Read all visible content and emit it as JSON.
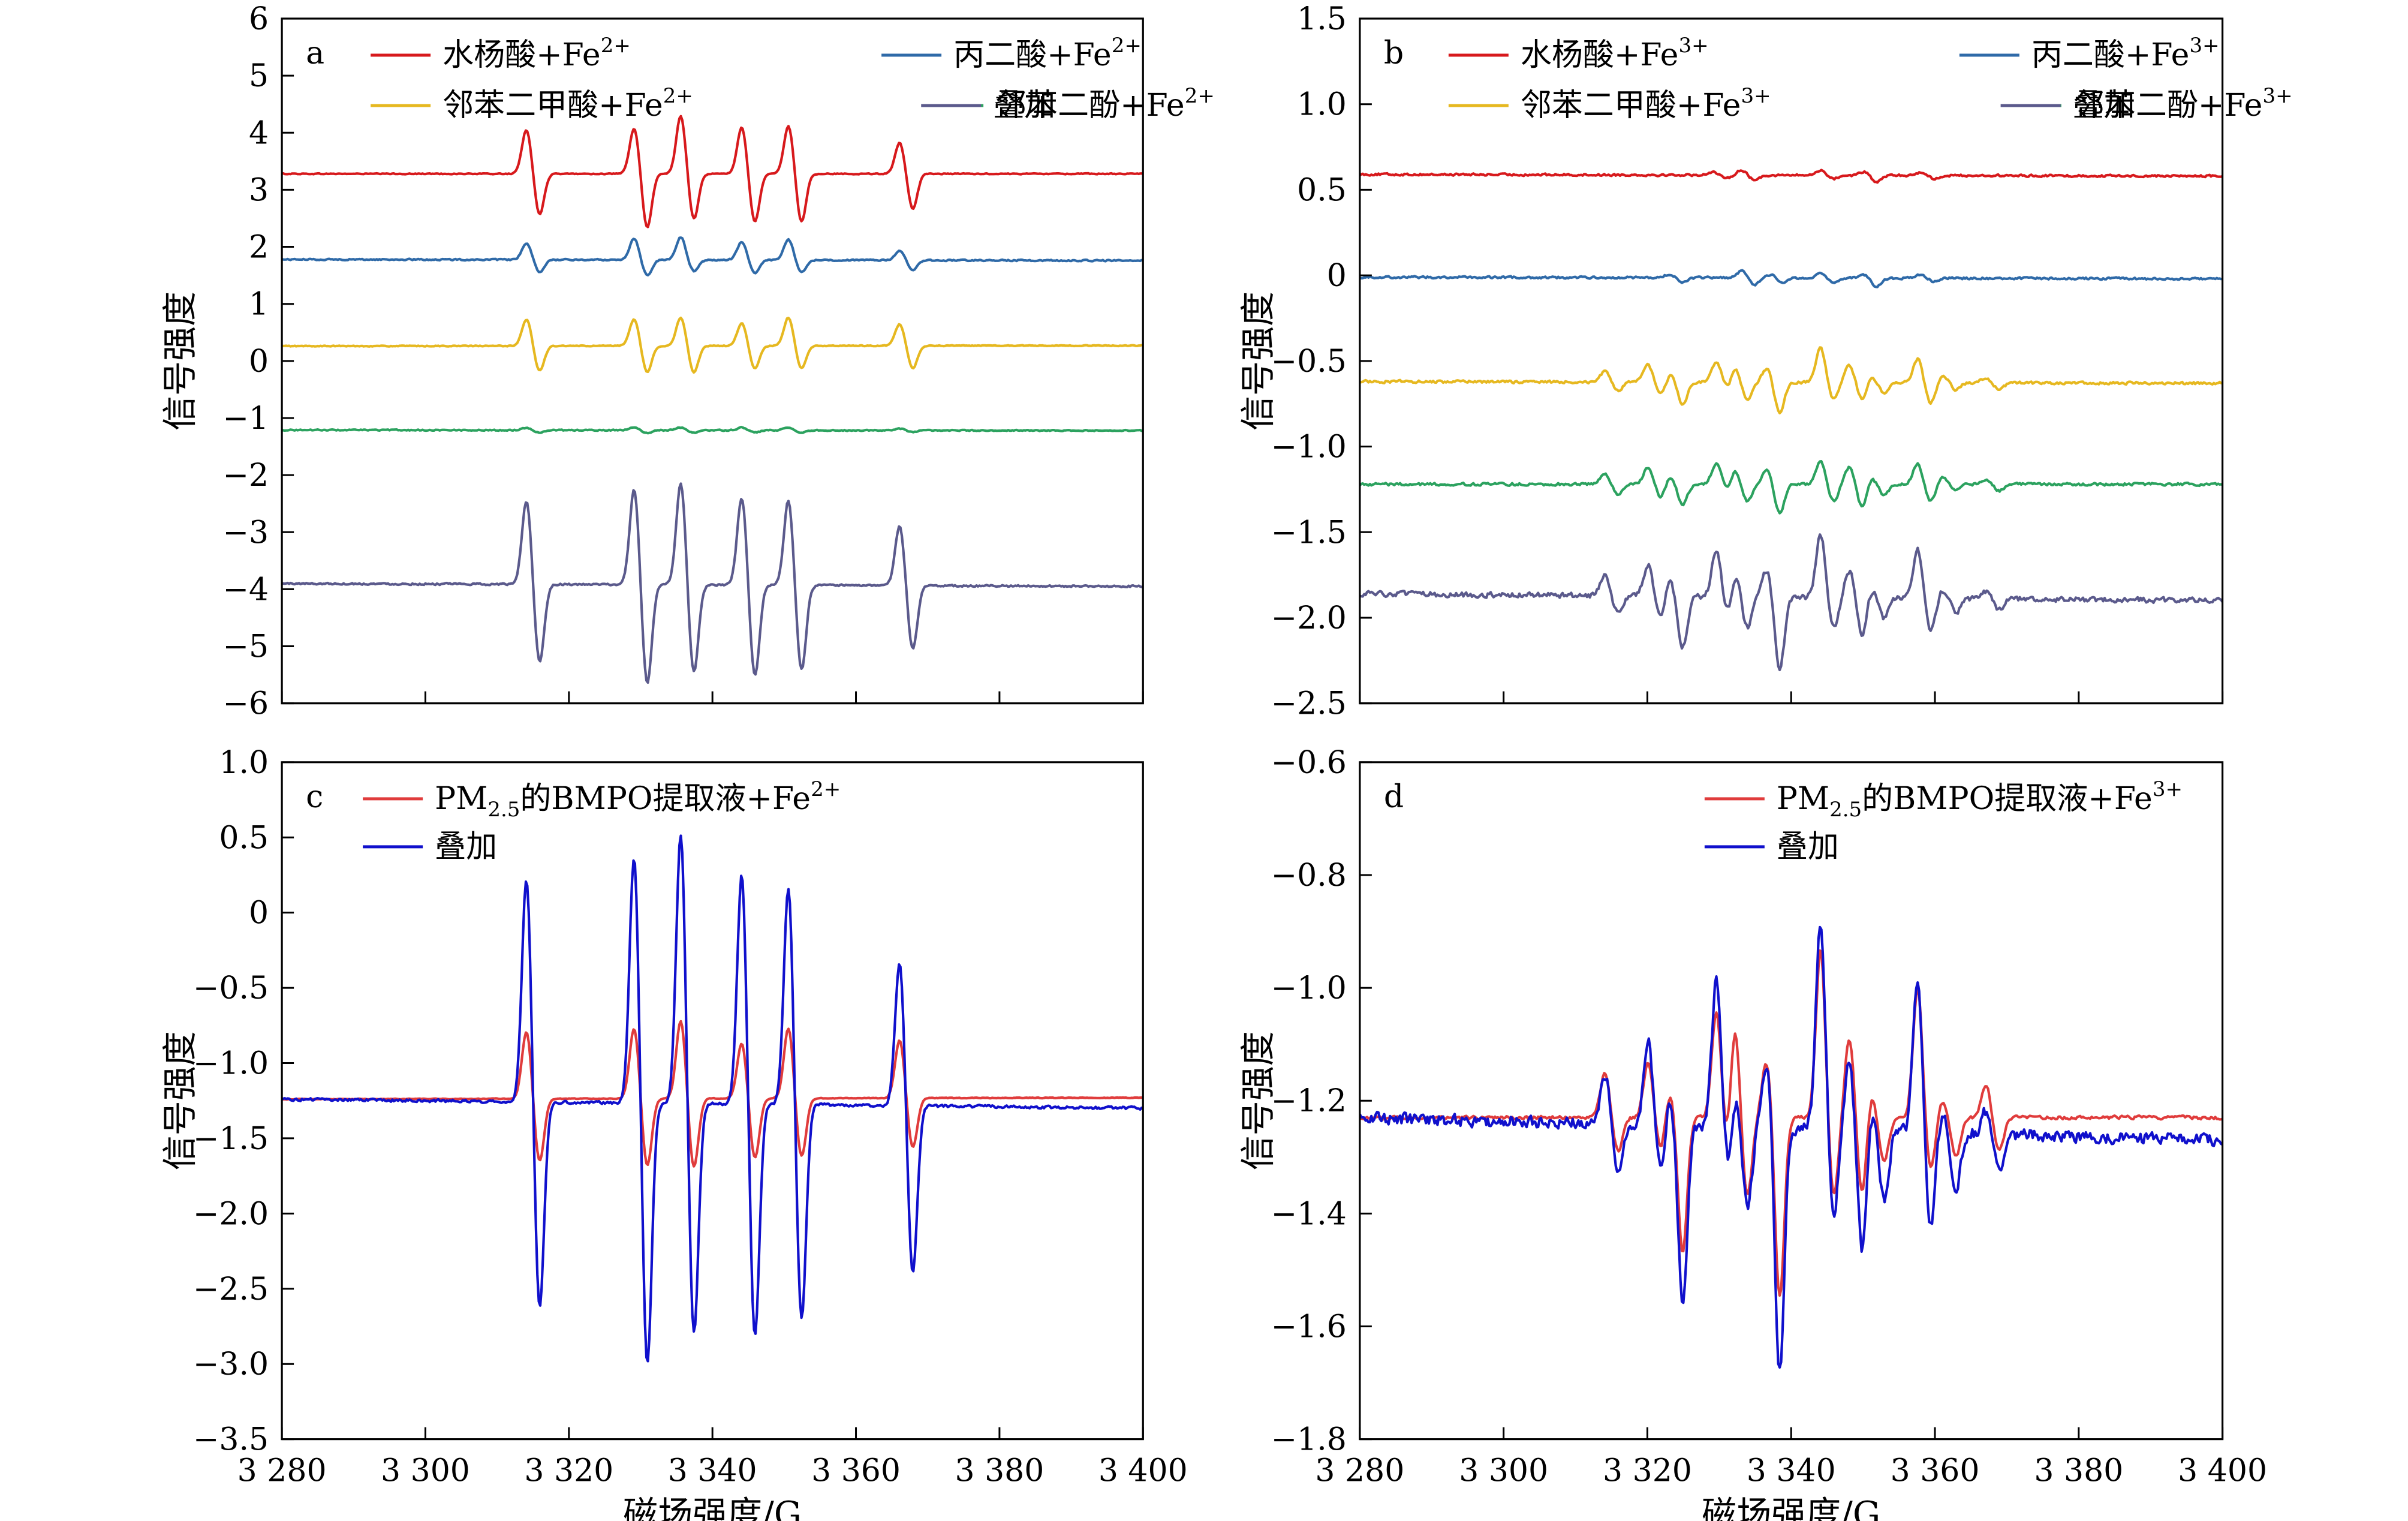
{
  "figure": {
    "x_axis_label": "磁场强度/G",
    "y_axis_label": "信号强度"
  },
  "chart_data": [
    {
      "panel": "a",
      "type": "line",
      "xlim": [
        3280,
        3400
      ],
      "ylim": [
        -6,
        6
      ],
      "x_ticks": [
        3280,
        3300,
        3320,
        3340,
        3360,
        3380,
        3400
      ],
      "x_tick_labels_shown": false,
      "y_ticks": [
        6,
        5,
        4,
        3,
        2,
        1,
        0,
        -1,
        -2,
        -3,
        -4,
        -5,
        -6
      ],
      "y_tick_labels": [
        "6",
        "5",
        "4",
        "3",
        "2",
        "1",
        "0",
        "−1",
        "−2",
        "−3",
        "−4",
        "−5",
        "−6"
      ],
      "ylabel": "信号强度",
      "legend": {
        "placement": "top",
        "columns": 2,
        "entries": [
          {
            "text": "水杨酸+Fe",
            "sup": "2+"
          },
          {
            "text": "丙二酸+Fe",
            "sup": "2+"
          },
          {
            "text": "邻苯二甲酸+Fe",
            "sup": "2+"
          },
          {
            "text": "邻苯二酚+Fe",
            "sup": "2+"
          },
          {
            "text": "叠加",
            "sup": ""
          }
        ]
      },
      "series": [
        {
          "name": "水杨酸+Fe2+",
          "color": "#d7191c",
          "baseline": 3.28,
          "baseline_end": 3.28,
          "noise": 0.01,
          "peaks": [
            [
              3315.0,
              0.78,
              -0.72
            ],
            [
              3330.0,
              0.8,
              -0.95
            ],
            [
              3336.5,
              1.02,
              -0.8
            ],
            [
              3345.0,
              0.82,
              -0.85
            ],
            [
              3351.5,
              0.85,
              -0.85
            ],
            [
              3367.0,
              0.55,
              -0.62
            ]
          ]
        },
        {
          "name": "丙二酸+Fe2+",
          "color": "#2f6aa8",
          "baseline": 1.78,
          "baseline_end": 1.76,
          "noise": 0.015,
          "peaks": [
            [
              3315.0,
              0.28,
              -0.22
            ],
            [
              3330.0,
              0.38,
              -0.27
            ],
            [
              3336.5,
              0.4,
              -0.2
            ],
            [
              3345.0,
              0.32,
              -0.23
            ],
            [
              3351.5,
              0.36,
              -0.21
            ],
            [
              3367.0,
              0.16,
              -0.17
            ]
          ]
        },
        {
          "name": "邻苯二甲酸+Fe2+",
          "color": "#e6b820",
          "baseline": 0.26,
          "baseline_end": 0.27,
          "noise": 0.01,
          "peaks": [
            [
              3315.0,
              0.47,
              -0.44
            ],
            [
              3330.0,
              0.47,
              -0.46
            ],
            [
              3336.5,
              0.5,
              -0.47
            ],
            [
              3345.0,
              0.4,
              -0.4
            ],
            [
              3351.5,
              0.5,
              -0.4
            ],
            [
              3367.0,
              0.38,
              -0.4
            ]
          ]
        },
        {
          "name": "邻苯二酚+Fe2+",
          "color": "#2ca25f",
          "baseline": -1.21,
          "baseline_end": -1.22,
          "noise": 0.012,
          "peaks": [
            [
              3315.0,
              0.04,
              -0.04
            ],
            [
              3330.0,
              0.05,
              -0.05
            ],
            [
              3336.5,
              0.05,
              -0.04
            ],
            [
              3345.0,
              0.05,
              -0.04
            ],
            [
              3351.5,
              0.05,
              -0.04
            ],
            [
              3367.0,
              0.03,
              -0.03
            ]
          ]
        },
        {
          "name": "叠加",
          "color": "#5b5a8c",
          "baseline": -3.9,
          "baseline_end": -3.95,
          "noise": 0.02,
          "peaks": [
            [
              3315.0,
              1.48,
              -1.38
            ],
            [
              3330.0,
              1.68,
              -1.75
            ],
            [
              3336.5,
              1.8,
              -1.55
            ],
            [
              3345.0,
              1.55,
              -1.6
            ],
            [
              3351.5,
              1.5,
              -1.5
            ],
            [
              3367.0,
              1.05,
              -1.12
            ]
          ]
        }
      ]
    },
    {
      "panel": "b",
      "type": "line",
      "xlim": [
        3280,
        3400
      ],
      "ylim": [
        -2.5,
        1.5
      ],
      "x_ticks": [
        3280,
        3300,
        3320,
        3340,
        3360,
        3380,
        3400
      ],
      "x_tick_labels_shown": false,
      "y_ticks": [
        1.5,
        1.0,
        0.5,
        0,
        -0.5,
        -1.0,
        -1.5,
        -2.0,
        -2.5
      ],
      "y_tick_labels": [
        "1.5",
        "1.0",
        "0.5",
        "0",
        "−0.5",
        "−1.0",
        "−1.5",
        "−2.0",
        "−2.5"
      ],
      "ylabel": "信号强度",
      "legend": {
        "placement": "top",
        "columns": 2,
        "entries": [
          {
            "text": "水杨酸+Fe",
            "sup": "3+"
          },
          {
            "text": "丙二酸+Fe",
            "sup": "3+"
          },
          {
            "text": "邻苯二甲酸+Fe",
            "sup": "3+"
          },
          {
            "text": "邻苯二酚+Fe",
            "sup": "3+"
          },
          {
            "text": "叠加",
            "sup": ""
          }
        ]
      },
      "series": [
        {
          "name": "水杨酸+Fe3+",
          "color": "#d7191c",
          "baseline": 0.59,
          "baseline_end": 0.58,
          "noise": 0.008,
          "peaks": [
            [
              3330.0,
              0.02,
              -0.02
            ],
            [
              3334.0,
              0.03,
              -0.03
            ],
            [
              3345.0,
              0.03,
              -0.02
            ],
            [
              3351.0,
              0.02,
              -0.04
            ],
            [
              3359.0,
              0.02,
              -0.02
            ]
          ]
        },
        {
          "name": "丙二酸+Fe3+",
          "color": "#2f6aa8",
          "baseline": -0.01,
          "baseline_end": -0.02,
          "noise": 0.008,
          "peaks": [
            [
              3324.0,
              0.02,
              -0.03
            ],
            [
              3334.0,
              0.04,
              -0.04
            ],
            [
              3338.0,
              0.02,
              -0.03
            ],
            [
              3345.0,
              0.03,
              -0.03
            ],
            [
              3351.0,
              0.02,
              -0.05
            ],
            [
              3359.0,
              0.02,
              -0.02
            ]
          ]
        },
        {
          "name": "邻苯二甲酸+Fe3+",
          "color": "#e6b820",
          "baseline": -0.62,
          "baseline_end": -0.63,
          "noise": 0.01,
          "peaks": [
            [
              3315.0,
              0.06,
              -0.05
            ],
            [
              3321.0,
              0.1,
              -0.08
            ],
            [
              3324.0,
              0.05,
              -0.13
            ],
            [
              3330.5,
              0.12,
              -0.06
            ],
            [
              3333.0,
              0.1,
              -0.1
            ],
            [
              3337.5,
              0.08,
              -0.18
            ],
            [
              3345.0,
              0.2,
              -0.1
            ],
            [
              3349.0,
              0.1,
              -0.1
            ],
            [
              3352.0,
              0.04,
              -0.06
            ],
            [
              3358.5,
              0.14,
              -0.12
            ],
            [
              3362.0,
              0.04,
              -0.04
            ],
            [
              3368.0,
              0.03,
              -0.04
            ]
          ]
        },
        {
          "name": "邻苯二酚+Fe3+",
          "color": "#2ca25f",
          "baseline": -1.22,
          "baseline_end": -1.22,
          "noise": 0.01,
          "peaks": [
            [
              3315.0,
              0.06,
              -0.06
            ],
            [
              3321.0,
              0.1,
              -0.08
            ],
            [
              3324.0,
              0.05,
              -0.12
            ],
            [
              3330.5,
              0.12,
              -0.06
            ],
            [
              3333.0,
              0.1,
              -0.1
            ],
            [
              3337.5,
              0.08,
              -0.17
            ],
            [
              3345.0,
              0.14,
              -0.1
            ],
            [
              3349.0,
              0.1,
              -0.14
            ],
            [
              3352.0,
              0.04,
              -0.06
            ],
            [
              3358.5,
              0.12,
              -0.1
            ],
            [
              3362.0,
              0.04,
              -0.04
            ],
            [
              3368.0,
              0.03,
              -0.04
            ]
          ]
        },
        {
          "name": "叠加",
          "color": "#5b5a8c",
          "baseline": -1.86,
          "baseline_end": -1.9,
          "noise": 0.02,
          "peaks": [
            [
              3315.0,
              0.12,
              -0.1
            ],
            [
              3321.0,
              0.18,
              -0.12
            ],
            [
              3324.0,
              0.1,
              -0.3
            ],
            [
              3330.5,
              0.27,
              -0.15
            ],
            [
              3333.0,
              0.18,
              -0.18
            ],
            [
              3337.5,
              0.16,
              -0.42
            ],
            [
              3345.0,
              0.37,
              -0.18
            ],
            [
              3349.0,
              0.16,
              -0.22
            ],
            [
              3352.0,
              0.06,
              -0.12
            ],
            [
              3358.5,
              0.29,
              -0.19
            ],
            [
              3362.0,
              0.05,
              -0.08
            ],
            [
              3368.0,
              0.04,
              -0.06
            ]
          ]
        }
      ]
    },
    {
      "panel": "c",
      "type": "line",
      "xlim": [
        3280,
        3400
      ],
      "ylim": [
        -3.5,
        1.0
      ],
      "x_ticks": [
        3280,
        3300,
        3320,
        3340,
        3360,
        3380,
        3400
      ],
      "x_tick_labels": [
        "3 280",
        "3 300",
        "3 320",
        "3 340",
        "3 360",
        "3 380",
        "3 400"
      ],
      "y_ticks": [
        1.0,
        0.5,
        0,
        -0.5,
        -1.0,
        -1.5,
        -2.0,
        -2.5,
        -3.0,
        -3.5
      ],
      "y_tick_labels": [
        "1.0",
        "0.5",
        "0",
        "−0.5",
        "−1.0",
        "−1.5",
        "−2.0",
        "−2.5",
        "−3.0",
        "−3.5"
      ],
      "xlabel": "磁场强度/G",
      "ylabel": "信号强度",
      "legend": {
        "placement": "top-left",
        "columns": 1,
        "entries": [
          {
            "text": "PM",
            "sub": "2.5",
            "text2": "的BMPO提取液+Fe",
            "sup": "2+"
          },
          {
            "text": "叠加"
          }
        ]
      },
      "series": [
        {
          "name": "PM2.5的BMPO提取液+Fe2+",
          "color": "#e03c3c",
          "baseline": -1.24,
          "baseline_end": -1.23,
          "noise": 0.003,
          "peaks": [
            [
              3315.0,
              0.45,
              -0.42
            ],
            [
              3330.0,
              0.47,
              -0.45
            ],
            [
              3336.5,
              0.52,
              -0.46
            ],
            [
              3345.0,
              0.37,
              -0.4
            ],
            [
              3351.5,
              0.47,
              -0.39
            ],
            [
              3367.0,
              0.39,
              -0.33
            ]
          ]
        },
        {
          "name": "叠加",
          "color": "#1010cc",
          "baseline": -1.24,
          "baseline_end": -1.3,
          "noise": 0.012,
          "peaks": [
            [
              3315.0,
              1.5,
              -1.38
            ],
            [
              3330.0,
              1.66,
              -1.75
            ],
            [
              3336.5,
              1.81,
              -1.55
            ],
            [
              3345.0,
              1.55,
              -1.57
            ],
            [
              3351.5,
              1.46,
              -1.44
            ],
            [
              3367.0,
              0.96,
              -1.12
            ]
          ]
        }
      ]
    },
    {
      "panel": "d",
      "type": "line",
      "xlim": [
        3280,
        3400
      ],
      "ylim": [
        -1.8,
        -0.6
      ],
      "x_ticks": [
        3280,
        3300,
        3320,
        3340,
        3360,
        3380,
        3400
      ],
      "x_tick_labels": [
        "3 280",
        "3 300",
        "3 320",
        "3 340",
        "3 360",
        "3 380",
        "3 400"
      ],
      "y_ticks": [
        -0.6,
        -0.8,
        -1.0,
        -1.2,
        -1.4,
        -1.6,
        -1.8
      ],
      "y_tick_labels": [
        "−0.6",
        "−0.8",
        "−1.0",
        "−1.2",
        "−1.4",
        "−1.6",
        "−1.8"
      ],
      "xlabel": "磁场强度/G",
      "ylabel": "信号强度",
      "legend": {
        "placement": "top-right",
        "columns": 1,
        "entries": [
          {
            "text": "PM",
            "sub": "2.5",
            "text2": "的BMPO提取液+Fe",
            "sup": "3+"
          },
          {
            "text": "叠加"
          }
        ]
      },
      "series": [
        {
          "name": "PM2.5的BMPO提取液+Fe3+",
          "color": "#e03c3c",
          "baseline": -1.23,
          "baseline_end": -1.23,
          "noise": 0.004,
          "peaks": [
            [
              3315.0,
              0.08,
              -0.06
            ],
            [
              3321.0,
              0.1,
              -0.06
            ],
            [
              3324.0,
              0.05,
              -0.24
            ],
            [
              3330.5,
              0.19,
              -0.08
            ],
            [
              3333.0,
              0.19,
              -0.14
            ],
            [
              3337.5,
              0.1,
              -0.32
            ],
            [
              3345.0,
              0.3,
              -0.14
            ],
            [
              3349.0,
              0.14,
              -0.14
            ],
            [
              3352.0,
              0.05,
              -0.08
            ],
            [
              3358.5,
              0.23,
              -0.09
            ],
            [
              3362.0,
              0.03,
              -0.07
            ],
            [
              3368.0,
              0.06,
              -0.06
            ]
          ]
        },
        {
          "name": "叠加",
          "color": "#1010cc",
          "baseline": -1.23,
          "baseline_end": -1.27,
          "noise": 0.014,
          "peaks": [
            [
              3315.0,
              0.09,
              -0.08
            ],
            [
              3321.0,
              0.15,
              -0.09
            ],
            [
              3324.0,
              0.06,
              -0.31
            ],
            [
              3330.5,
              0.26,
              -0.1
            ],
            [
              3333.0,
              0.09,
              -0.14
            ],
            [
              3337.5,
              0.12,
              -0.43
            ],
            [
              3345.0,
              0.37,
              -0.15
            ],
            [
              3349.0,
              0.12,
              -0.22
            ],
            [
              3352.0,
              0.05,
              -0.12
            ],
            [
              3358.5,
              0.27,
              -0.17
            ],
            [
              3362.0,
              0.04,
              -0.1
            ],
            [
              3368.0,
              0.04,
              -0.06
            ]
          ]
        }
      ]
    }
  ]
}
